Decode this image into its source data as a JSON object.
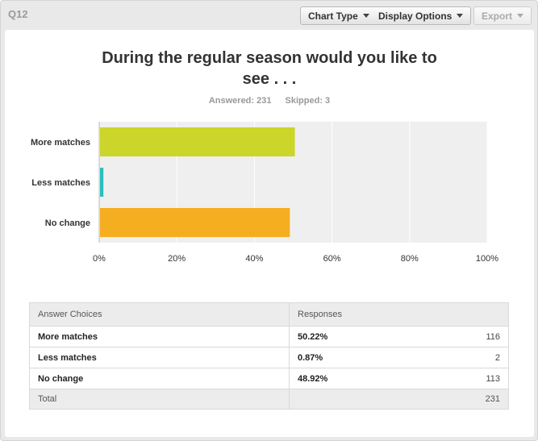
{
  "question_label": "Q12",
  "toolbar": {
    "chart_type_label": "Chart Type",
    "display_options_label": "Display Options",
    "export_label": "Export"
  },
  "summary": {
    "answered": "Answered: 231",
    "skipped": "Skipped: 3"
  },
  "chart_data": {
    "type": "bar",
    "orientation": "horizontal",
    "title": "During the regular season would you like to see . . .",
    "categories": [
      "More matches",
      "Less matches",
      "No change"
    ],
    "values": [
      50.22,
      0.87,
      48.92
    ],
    "colors": [
      "#cbd52a",
      "#2dbdbd",
      "#f6ae21"
    ],
    "xlim": [
      0,
      100
    ],
    "x_ticks": [
      "0%",
      "20%",
      "40%",
      "60%",
      "80%",
      "100%"
    ],
    "grid": true
  },
  "table": {
    "headers": [
      "Answer Choices",
      "Responses"
    ],
    "rows": [
      {
        "choice": "More matches",
        "percent": "50.22%",
        "count": "116"
      },
      {
        "choice": "Less matches",
        "percent": "0.87%",
        "count": "2"
      },
      {
        "choice": "No change",
        "percent": "48.92%",
        "count": "113"
      }
    ],
    "total_label": "Total",
    "total_count": "231"
  }
}
